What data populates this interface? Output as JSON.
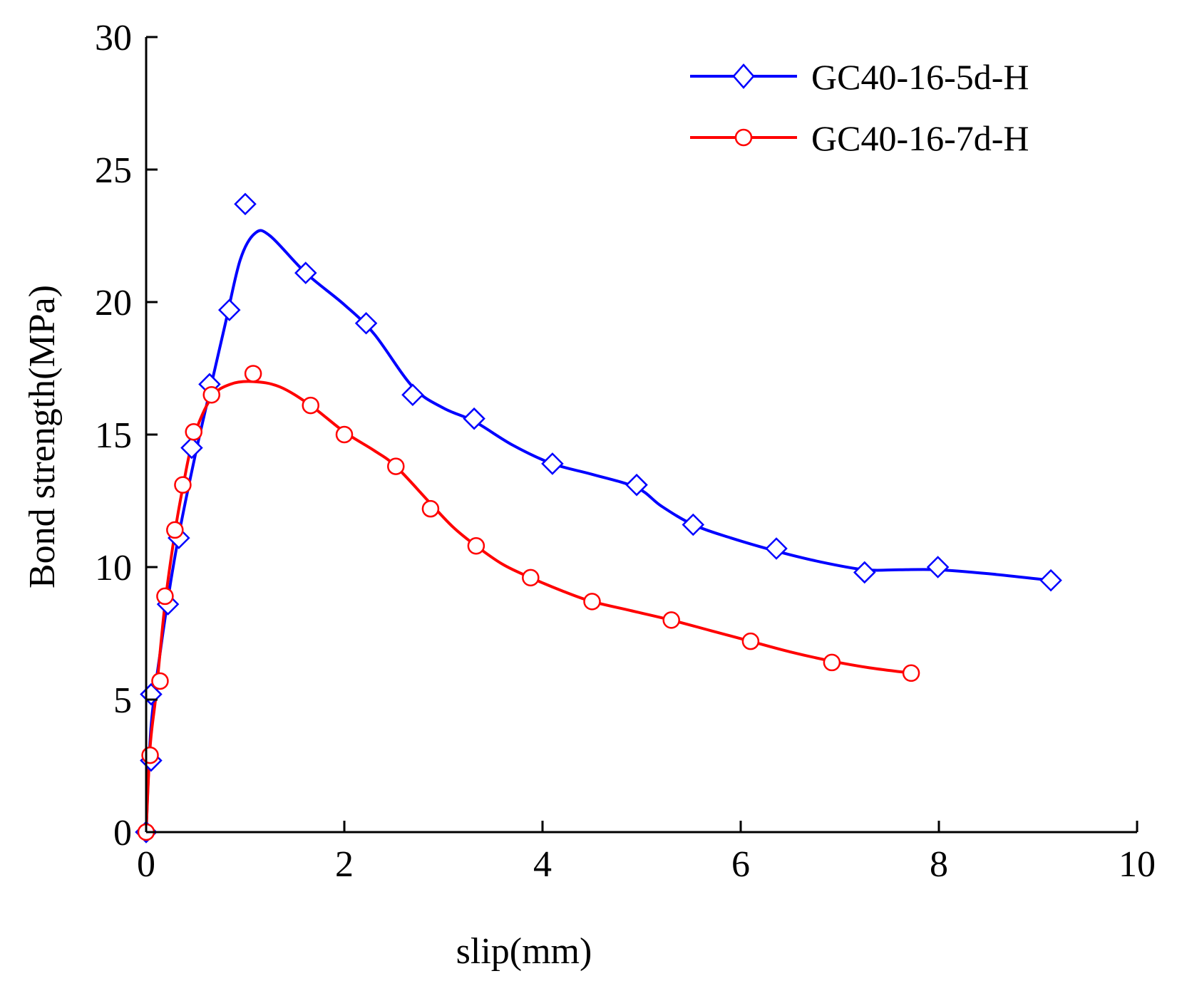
{
  "chart_data": {
    "type": "line",
    "title": "",
    "xlabel": "slip(mm)",
    "ylabel": "Bond strength(MPa)",
    "xlim": [
      0,
      10
    ],
    "ylim": [
      0,
      30
    ],
    "xticks": [
      0,
      2,
      4,
      6,
      8,
      10
    ],
    "yticks": [
      0,
      5,
      10,
      15,
      20,
      25,
      30
    ],
    "xtick_labels": [
      "0",
      "2",
      "4",
      "6",
      "8",
      "10"
    ],
    "ytick_labels": [
      "0",
      "5",
      "10",
      "15",
      "20",
      "25",
      "30"
    ],
    "grid": false,
    "legend_position": "top-right",
    "series": [
      {
        "name": "GC40-16-5d-H",
        "color": "#0000ff",
        "marker": "diamond",
        "points": [
          [
            0.0,
            0.0
          ],
          [
            0.05,
            2.7
          ],
          [
            0.05,
            5.2
          ],
          [
            0.22,
            8.6
          ],
          [
            0.33,
            11.1
          ],
          [
            0.46,
            14.5
          ],
          [
            0.64,
            16.9
          ],
          [
            0.84,
            19.7
          ],
          [
            1.0,
            23.7
          ],
          [
            1.61,
            21.1
          ],
          [
            2.22,
            19.2
          ],
          [
            2.69,
            16.5
          ],
          [
            3.31,
            15.6
          ],
          [
            4.1,
            13.9
          ],
          [
            4.95,
            13.1
          ],
          [
            5.52,
            11.6
          ],
          [
            6.36,
            10.7
          ],
          [
            7.25,
            9.8
          ],
          [
            7.99,
            10.0
          ],
          [
            9.13,
            9.5
          ]
        ],
        "curve": [
          [
            0.0,
            0.0
          ],
          [
            0.05,
            4.0
          ],
          [
            0.15,
            7.0
          ],
          [
            0.25,
            9.5
          ],
          [
            0.35,
            11.6
          ],
          [
            0.5,
            14.3
          ],
          [
            0.64,
            16.6
          ],
          [
            0.8,
            19.2
          ],
          [
            0.95,
            21.6
          ],
          [
            1.1,
            22.6
          ],
          [
            1.25,
            22.5
          ],
          [
            1.61,
            21.1
          ],
          [
            2.0,
            19.9
          ],
          [
            2.3,
            18.8
          ],
          [
            2.69,
            16.8
          ],
          [
            3.0,
            16.0
          ],
          [
            3.31,
            15.5
          ],
          [
            3.7,
            14.6
          ],
          [
            4.1,
            13.9
          ],
          [
            4.5,
            13.5
          ],
          [
            4.95,
            13.0
          ],
          [
            5.2,
            12.3
          ],
          [
            5.52,
            11.6
          ],
          [
            5.9,
            11.1
          ],
          [
            6.36,
            10.6
          ],
          [
            6.8,
            10.2
          ],
          [
            7.25,
            9.9
          ],
          [
            7.6,
            9.9
          ],
          [
            7.99,
            9.9
          ],
          [
            8.5,
            9.75
          ],
          [
            9.13,
            9.5
          ]
        ]
      },
      {
        "name": "GC40-16-7d-H",
        "color": "#ff0000",
        "marker": "circle",
        "points": [
          [
            0.0,
            0.0
          ],
          [
            0.04,
            2.9
          ],
          [
            0.14,
            5.7
          ],
          [
            0.19,
            8.9
          ],
          [
            0.29,
            11.4
          ],
          [
            0.37,
            13.1
          ],
          [
            0.48,
            15.1
          ],
          [
            0.66,
            16.5
          ],
          [
            1.08,
            17.3
          ],
          [
            1.66,
            16.1
          ],
          [
            2.0,
            15.0
          ],
          [
            2.52,
            13.8
          ],
          [
            2.87,
            12.2
          ],
          [
            3.33,
            10.8
          ],
          [
            3.88,
            9.6
          ],
          [
            4.5,
            8.7
          ],
          [
            5.3,
            8.0
          ],
          [
            6.1,
            7.2
          ],
          [
            6.92,
            6.4
          ],
          [
            7.72,
            6.0
          ]
        ],
        "curve": [
          [
            0.0,
            0.0
          ],
          [
            0.04,
            3.2
          ],
          [
            0.1,
            5.2
          ],
          [
            0.19,
            8.6
          ],
          [
            0.29,
            11.3
          ],
          [
            0.37,
            13.0
          ],
          [
            0.48,
            14.9
          ],
          [
            0.66,
            16.4
          ],
          [
            0.85,
            16.9
          ],
          [
            1.08,
            17.0
          ],
          [
            1.35,
            16.8
          ],
          [
            1.66,
            16.1
          ],
          [
            2.0,
            15.1
          ],
          [
            2.3,
            14.4
          ],
          [
            2.52,
            13.8
          ],
          [
            2.87,
            12.4
          ],
          [
            3.1,
            11.5
          ],
          [
            3.33,
            10.8
          ],
          [
            3.6,
            10.1
          ],
          [
            3.88,
            9.6
          ],
          [
            4.2,
            9.1
          ],
          [
            4.5,
            8.7
          ],
          [
            4.9,
            8.35
          ],
          [
            5.3,
            8.0
          ],
          [
            5.7,
            7.6
          ],
          [
            6.1,
            7.2
          ],
          [
            6.5,
            6.8
          ],
          [
            6.92,
            6.45
          ],
          [
            7.3,
            6.2
          ],
          [
            7.72,
            6.0
          ]
        ]
      }
    ]
  }
}
